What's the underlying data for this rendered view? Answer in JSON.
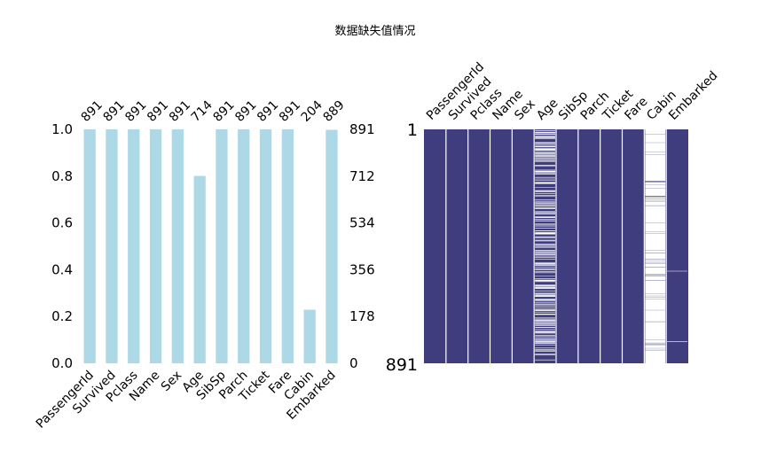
{
  "title": "数据缺失值情况",
  "chart_data": [
    {
      "type": "bar",
      "categories": [
        "PassengerId",
        "Survived",
        "Pclass",
        "Name",
        "Sex",
        "Age",
        "SibSp",
        "Parch",
        "Ticket",
        "Fare",
        "Cabin",
        "Embarked"
      ],
      "values": [
        1.0,
        1.0,
        1.0,
        1.0,
        1.0,
        0.801,
        1.0,
        1.0,
        1.0,
        1.0,
        0.229,
        0.998
      ],
      "counts": [
        891,
        891,
        891,
        891,
        891,
        714,
        891,
        891,
        891,
        891,
        204,
        889
      ],
      "ylim": [
        0,
        1.0
      ],
      "left_ticks": [
        "0.0",
        "0.2",
        "0.4",
        "0.6",
        "0.8",
        "1.0"
      ],
      "right_ticks": [
        "0",
        "178",
        "356",
        "534",
        "712",
        "891"
      ],
      "bar_color": "#add8e6"
    },
    {
      "type": "heatmap",
      "columns": [
        "PassengerId",
        "Survived",
        "Pclass",
        "Name",
        "Sex",
        "Age",
        "SibSp",
        "Parch",
        "Ticket",
        "Fare",
        "Cabin",
        "Embarked"
      ],
      "row_range": [
        1,
        891
      ],
      "y_ticks": [
        "1",
        "891"
      ],
      "present_counts": [
        891,
        891,
        891,
        891,
        891,
        714,
        891,
        891,
        891,
        891,
        204,
        889
      ],
      "present_color": "#3f3d7d",
      "missing_color": "#ffffff"
    }
  ]
}
